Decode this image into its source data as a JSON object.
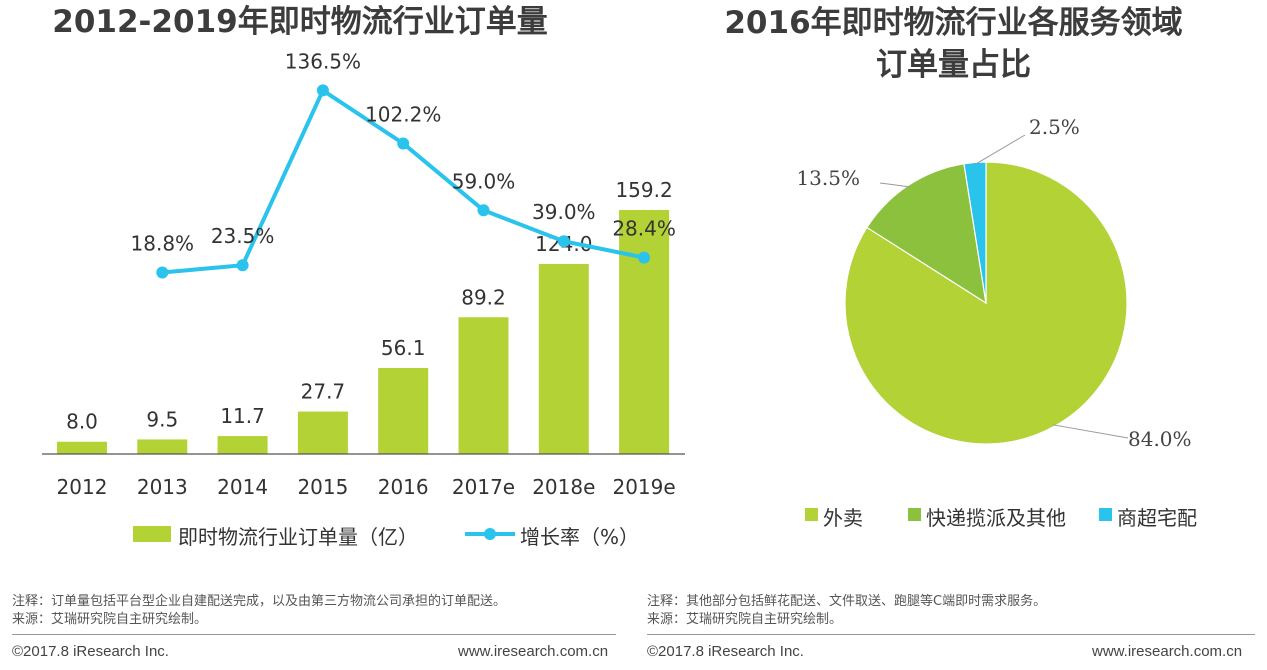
{
  "chart_data": [
    {
      "type": "bar",
      "title": "2012-2019年即时物流行业订单量",
      "categories": [
        "2012",
        "2013",
        "2014",
        "2015",
        "2016",
        "2017e",
        "2018e",
        "2019e"
      ],
      "series": [
        {
          "name": "即时物流行业订单量（亿）",
          "type": "bar",
          "color": "#b3d235",
          "values": [
            8.0,
            9.5,
            11.7,
            27.7,
            56.1,
            89.2,
            124.0,
            159.2
          ],
          "labels": [
            "8.0",
            "9.5",
            "11.7",
            "27.7",
            "56.1",
            "89.2",
            "124.0",
            "159.2"
          ]
        },
        {
          "name": "增长率（%）",
          "type": "line",
          "color": "#29c3ec",
          "values": [
            null,
            18.8,
            23.5,
            136.5,
            102.2,
            59.0,
            39.0,
            28.4
          ],
          "labels": [
            "",
            "18.8%",
            "23.5%",
            "136.5%",
            "102.2%",
            "59.0%",
            "39.0%",
            "28.4%"
          ]
        }
      ],
      "xlabel": "",
      "ylabel": "",
      "bar_range": [
        0,
        165
      ],
      "line_range": [
        -180,
        140
      ],
      "grid": false,
      "legend_position": "bottom"
    },
    {
      "type": "pie",
      "title": [
        "2016年即时物流行业各服务领域",
        "订单量占比"
      ],
      "slices": [
        {
          "label": "外卖",
          "value": 84.0,
          "text": "84.0%",
          "color": "#b3d235"
        },
        {
          "label": "快递揽派及其他",
          "value": 13.5,
          "text": "13.5%",
          "color": "#8bc13c"
        },
        {
          "label": "商超宅配",
          "value": 2.5,
          "text": "2.5%",
          "color": "#29c3ec"
        }
      ],
      "legend_position": "bottom"
    }
  ],
  "footer": {
    "left_note": "注释：订单量包括平台型企业自建配送完成，以及由第三方物流公司承担的订单配送。",
    "left_source": "来源：艾瑞研究院自主研究绘制。",
    "right_note": "注释：其他部分包括鲜花配送、文件取送、跑腿等C端即时需求服务。",
    "right_source": "来源：艾瑞研究院自主研究绘制。",
    "copyright": "©2017.8 iResearch Inc.",
    "website": "www.iresearch.com.cn"
  }
}
